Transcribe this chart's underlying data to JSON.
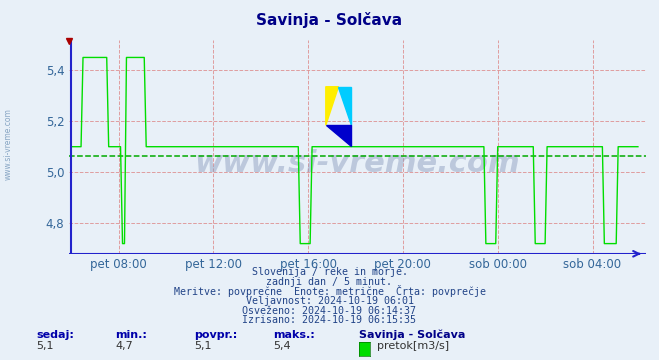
{
  "title": "Savinja - Solčava",
  "bg_color": "#e8f0f8",
  "plot_bg_color": "#e8f0f8",
  "line_color": "#00dd00",
  "avg_line_color": "#00aa00",
  "grid_color": "#dd8888",
  "axis_color": "#2222cc",
  "title_color": "#000088",
  "tick_color": "#336699",
  "ylim": [
    4.68,
    5.52
  ],
  "yticks": [
    4.8,
    5.0,
    5.2,
    5.4
  ],
  "avg_value": 5.065,
  "xtick_indices": [
    24,
    72,
    120,
    168,
    216,
    264
  ],
  "xtick_labels": [
    "pet 08:00",
    "pet 12:00",
    "pet 16:00",
    "pet 20:00",
    "sob 00:00",
    "sob 04:00"
  ],
  "n_points": 288,
  "text_lines": [
    "Slovenija / reke in morje.",
    "zadnji dan / 5 minut.",
    "Meritve: povprečne  Enote: metrične  Črta: povprečje",
    "Veljavnost: 2024-10-19 06:01",
    "Osveženo: 2024-10-19 06:14:37",
    "Izrisano: 2024-10-19 06:15:35"
  ],
  "bottom_labels": [
    "sedaj:",
    "min.:",
    "povpr.:",
    "maks.:"
  ],
  "bottom_values": [
    "5,1",
    "4,7",
    "5,1",
    "5,4"
  ],
  "bottom_station": "Savinja - Solčava",
  "bottom_legend": "pretok[m3/s]",
  "watermark": "www.si-vreme.com",
  "sidebar_text": "www.si-vreme.com"
}
